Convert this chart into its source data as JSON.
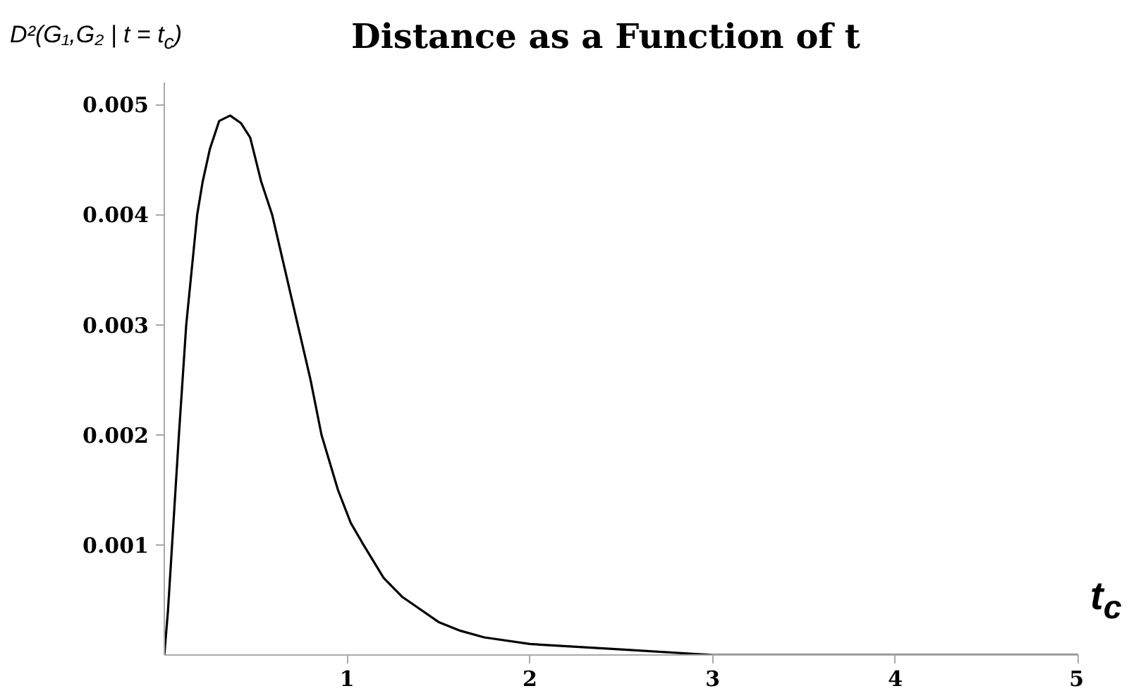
{
  "chart_data": {
    "type": "line",
    "title": "Distance as a Function of t",
    "xlabel": "t$_{c}$",
    "ylabel": "D²(G₁,G₂ | t = t$_{c}$)",
    "x": [
      0,
      0.02,
      0.05,
      0.08,
      0.12,
      0.15,
      0.18,
      0.21,
      0.25,
      0.3,
      0.36,
      0.42,
      0.47,
      0.53,
      0.59,
      0.66,
      0.73,
      0.8,
      0.86,
      0.95,
      1.02,
      1.09,
      1.2,
      1.3,
      1.37,
      1.5,
      1.62,
      1.75,
      2,
      2.5,
      3,
      3.5,
      4,
      5
    ],
    "series": [
      {
        "color": "#000000",
        "values": [
          0,
          0.0004,
          0.0012,
          0.002,
          0.003,
          0.0035,
          0.004,
          0.0043,
          0.0046,
          0.00485,
          0.0049,
          0.00483,
          0.0047,
          0.0043,
          0.004,
          0.0035,
          0.003,
          0.0025,
          0.002,
          0.0015,
          0.0012,
          0.001,
          0.0007,
          0.00053,
          0.00045,
          0.0003,
          0.00022,
          0.00016,
          0.0001,
          5e-05,
          0,
          0,
          0,
          0
        ]
      }
    ],
    "xlim": [
      0,
      5
    ],
    "ylim": [
      0,
      0.0052
    ],
    "xticks": [
      1,
      2,
      3,
      4,
      5
    ],
    "yticks": [
      0.001,
      0.002,
      0.003,
      0.004,
      0.005
    ],
    "grid": false,
    "marker": "none",
    "line_style": "solid"
  }
}
